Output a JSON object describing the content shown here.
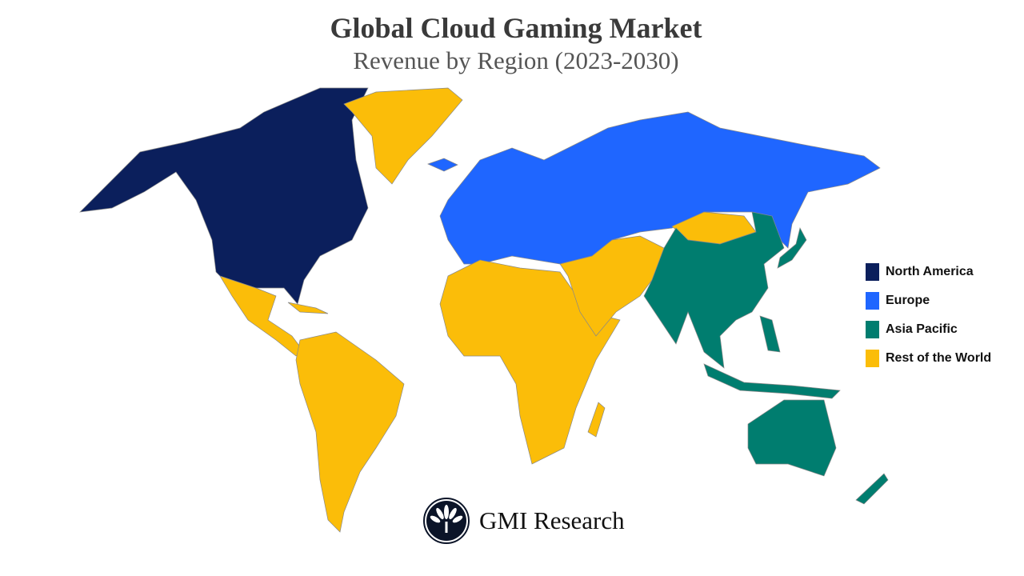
{
  "title": "Global Cloud Gaming Market",
  "subtitle": "Revenue by Region (2023-2030)",
  "colors": {
    "north_america": "#0b1f5c",
    "europe": "#1f66ff",
    "asia_pacific": "#007d6f",
    "rest_of_world": "#fbbd09"
  },
  "legend": [
    {
      "label": "North America",
      "color": "#0b1f5c"
    },
    {
      "label": "Europe",
      "color": "#1f66ff"
    },
    {
      "label": "Asia Pacific",
      "color": "#007d6f"
    },
    {
      "label": "Rest of the World",
      "color": "#fbbd09"
    }
  ],
  "logo": {
    "text": "GMI Research"
  }
}
